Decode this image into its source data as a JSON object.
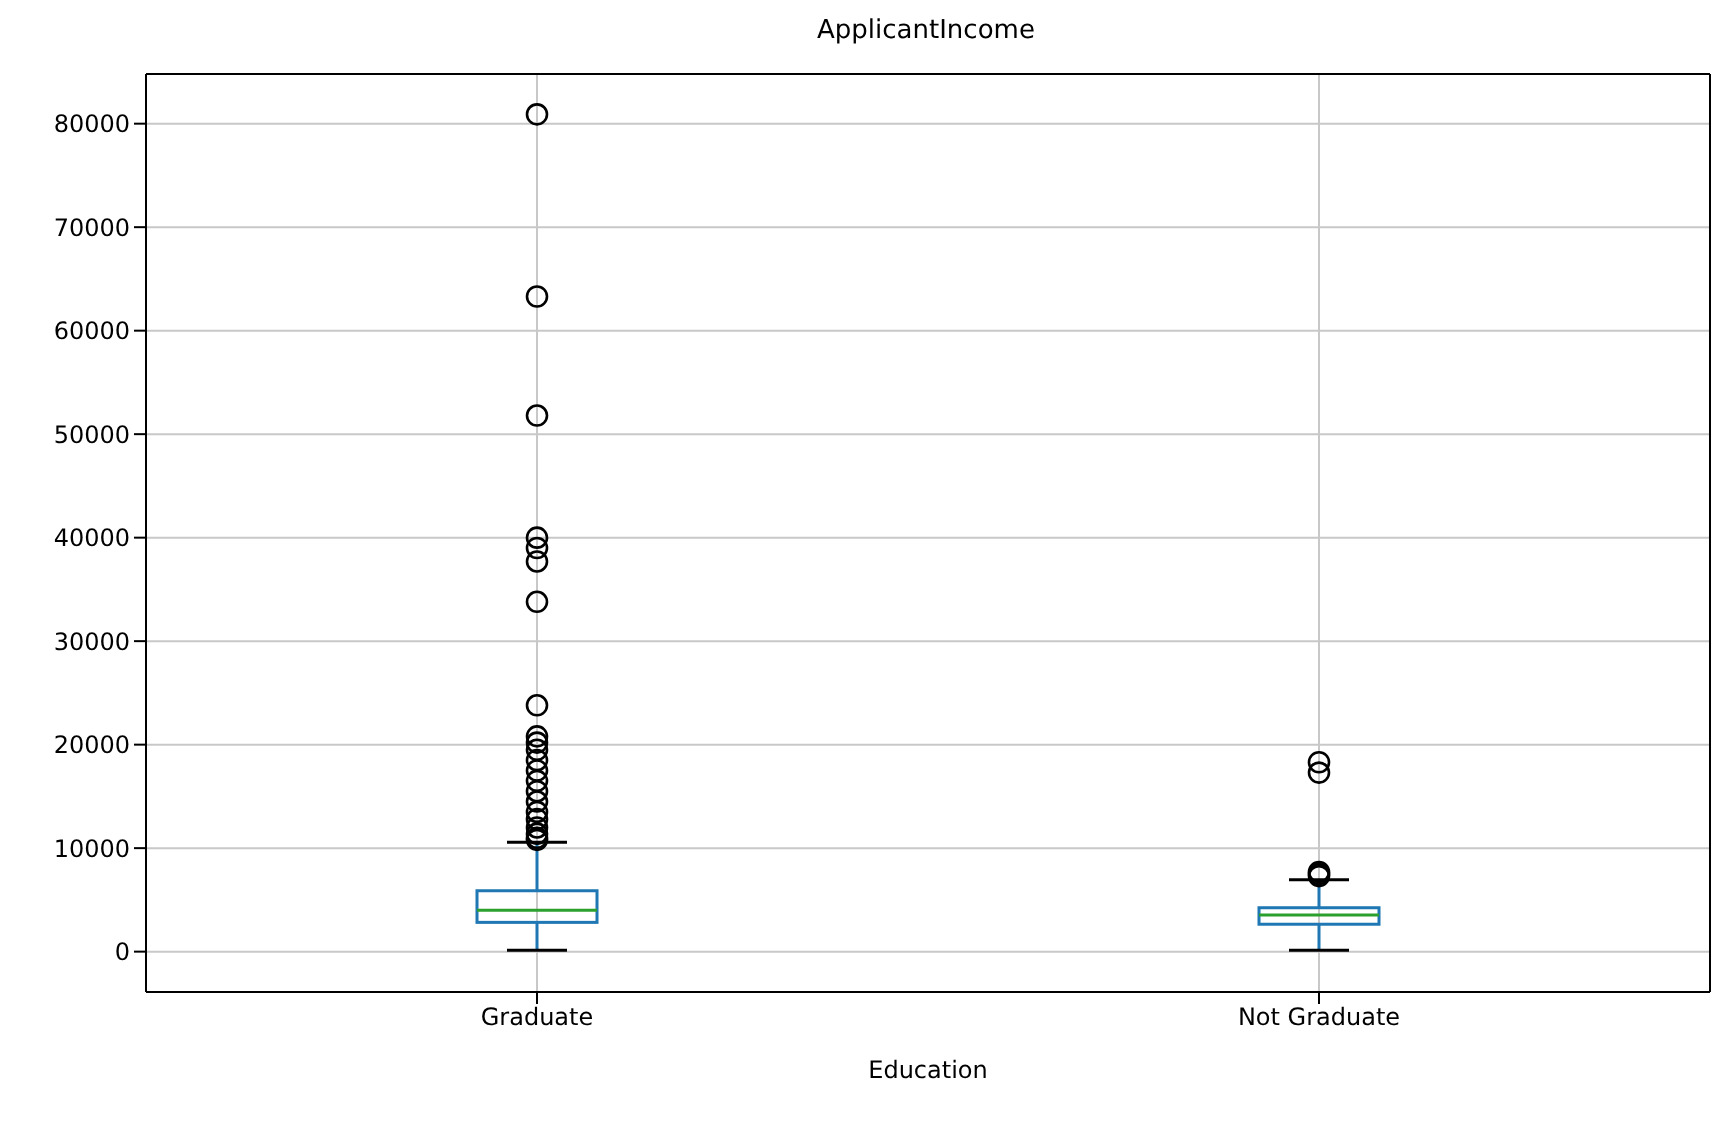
{
  "chart_data": {
    "type": "box",
    "title": "ApplicantIncome",
    "xlabel": "Education",
    "categories": [
      "Graduate",
      "Not Graduate"
    ],
    "boxes": [
      {
        "low": 150,
        "q1": 2830,
        "median": 4010,
        "q3": 5880,
        "high": 10550,
        "outliers": [
          80900,
          63300,
          51800,
          40000,
          39000,
          37700,
          33800,
          23800,
          20800,
          20200,
          19500,
          18500,
          17500,
          16500,
          15500,
          14500,
          13500,
          12800,
          12000,
          11400,
          11000,
          10800
        ]
      },
      {
        "low": 150,
        "q1": 2650,
        "median": 3530,
        "q3": 4240,
        "high": 6950,
        "outliers": [
          18300,
          17300,
          7700,
          7500,
          7300
        ]
      }
    ],
    "ylim": [
      -3900,
      84800
    ],
    "yticks": [
      0,
      10000,
      20000,
      30000,
      40000,
      50000,
      60000,
      70000,
      80000
    ],
    "grid": true
  }
}
